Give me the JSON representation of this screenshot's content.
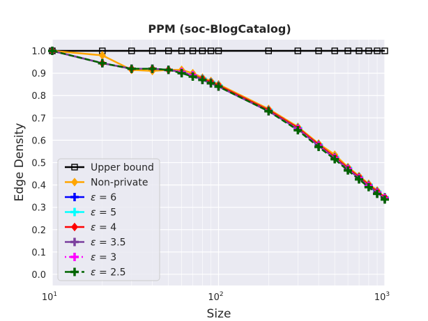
{
  "chart_data": {
    "type": "line",
    "title": "PPM (soc-BlogCatalog)",
    "xlabel": "Size",
    "ylabel": "Edge Density",
    "xscale": "log",
    "xlim": [
      10,
      1000
    ],
    "ylim": [
      -0.05,
      1.05
    ],
    "x_ticks": [
      {
        "value": 10,
        "base": "10",
        "exp": "1"
      },
      {
        "value": 100,
        "base": "10",
        "exp": "2"
      },
      {
        "value": 1000,
        "base": "10",
        "exp": "3"
      }
    ],
    "y_ticks": [
      {
        "value": 0.0,
        "label": "0.0"
      },
      {
        "value": 0.1,
        "label": "0.1"
      },
      {
        "value": 0.2,
        "label": "0.2"
      },
      {
        "value": 0.3,
        "label": "0.3"
      },
      {
        "value": 0.4,
        "label": "0.4"
      },
      {
        "value": 0.5,
        "label": "0.5"
      },
      {
        "value": 0.6,
        "label": "0.6"
      },
      {
        "value": 0.7,
        "label": "0.7"
      },
      {
        "value": 0.8,
        "label": "0.8"
      },
      {
        "value": 0.9,
        "label": "0.9"
      },
      {
        "value": 1.0,
        "label": "1.0"
      }
    ],
    "grid": true,
    "legend_position": "lower-left",
    "x": [
      10,
      20,
      30,
      40,
      50,
      60,
      70,
      80,
      90,
      100,
      200,
      300,
      400,
      500,
      600,
      700,
      800,
      900,
      1000
    ],
    "series": [
      {
        "name": "Upper bound",
        "legend_eps": false,
        "color": "#000000",
        "marker": "square",
        "dash": "solid",
        "values": [
          1.0,
          1.0,
          1.0,
          1.0,
          1.0,
          1.0,
          1.0,
          1.0,
          1.0,
          1.0,
          1.0,
          1.0,
          1.0,
          1.0,
          1.0,
          1.0,
          1.0,
          1.0,
          1.0
        ]
      },
      {
        "name": "Non-private",
        "legend_eps": false,
        "color": "#FFA500",
        "marker": "diamond",
        "dash": "solid",
        "values": [
          1.0,
          0.98,
          0.915,
          0.91,
          0.915,
          0.915,
          0.9,
          0.88,
          0.865,
          0.85,
          0.74,
          0.66,
          0.585,
          0.535,
          0.48,
          0.44,
          0.405,
          0.375,
          0.345
        ]
      },
      {
        "name": "= 6",
        "legend_eps": true,
        "color": "#0000FF",
        "marker": "plus",
        "dash": "dashdot",
        "values": [
          1.0,
          0.945,
          0.92,
          0.92,
          0.915,
          0.905,
          0.89,
          0.875,
          0.86,
          0.845,
          0.735,
          0.655,
          0.58,
          0.525,
          0.475,
          0.435,
          0.4,
          0.37,
          0.345
        ]
      },
      {
        "name": "= 5",
        "legend_eps": true,
        "color": "#00FFFF",
        "marker": "plus",
        "dash": "solid",
        "values": [
          1.0,
          0.945,
          0.92,
          0.92,
          0.915,
          0.905,
          0.89,
          0.875,
          0.86,
          0.845,
          0.735,
          0.655,
          0.58,
          0.525,
          0.475,
          0.435,
          0.4,
          0.37,
          0.345
        ]
      },
      {
        "name": "= 4",
        "legend_eps": true,
        "color": "#FF0000",
        "marker": "diamond",
        "dash": "solid",
        "values": [
          1.0,
          0.945,
          0.92,
          0.92,
          0.915,
          0.905,
          0.89,
          0.875,
          0.86,
          0.845,
          0.735,
          0.655,
          0.58,
          0.525,
          0.475,
          0.435,
          0.4,
          0.37,
          0.345
        ]
      },
      {
        "name": "= 3.5",
        "legend_eps": true,
        "color": "#7B3F9E",
        "marker": "plus",
        "dash": "solid",
        "values": [
          1.0,
          0.945,
          0.92,
          0.92,
          0.915,
          0.905,
          0.89,
          0.87,
          0.855,
          0.84,
          0.73,
          0.65,
          0.575,
          0.52,
          0.47,
          0.43,
          0.395,
          0.365,
          0.34
        ]
      },
      {
        "name": "= 3",
        "legend_eps": true,
        "color": "#FF00FF",
        "marker": "plus",
        "dash": "dotted",
        "values": [
          1.0,
          0.945,
          0.92,
          0.92,
          0.915,
          0.905,
          0.89,
          0.87,
          0.855,
          0.84,
          0.73,
          0.65,
          0.575,
          0.52,
          0.47,
          0.43,
          0.395,
          0.365,
          0.34
        ]
      },
      {
        "name": "= 2.5",
        "legend_eps": true,
        "color": "#006400",
        "marker": "plus",
        "dash": "dashed",
        "values": [
          1.0,
          0.945,
          0.92,
          0.92,
          0.915,
          0.9,
          0.885,
          0.87,
          0.855,
          0.84,
          0.73,
          0.645,
          0.57,
          0.515,
          0.465,
          0.425,
          0.39,
          0.36,
          0.335
        ]
      }
    ]
  }
}
